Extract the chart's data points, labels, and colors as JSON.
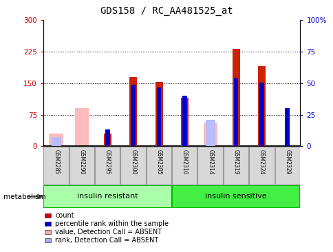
{
  "title": "GDS158 / RC_AA481525_at",
  "samples": [
    "GSM2285",
    "GSM2290",
    "GSM2295",
    "GSM2300",
    "GSM2305",
    "GSM2310",
    "GSM2314",
    "GSM2319",
    "GSM2324",
    "GSM2329"
  ],
  "red_bars": [
    0,
    0,
    30,
    165,
    153,
    115,
    0,
    232,
    190,
    0
  ],
  "blue_bars": [
    0,
    0,
    40,
    147,
    140,
    120,
    0,
    163,
    152,
    90
  ],
  "pink_bars": [
    30,
    90,
    0,
    0,
    0,
    0,
    55,
    0,
    0,
    0
  ],
  "lavender_bars": [
    22,
    0,
    0,
    0,
    0,
    0,
    62,
    0,
    0,
    0
  ],
  "ylim_left": [
    0,
    300
  ],
  "ylim_right": [
    0,
    100
  ],
  "yticks_left": [
    0,
    75,
    150,
    225,
    300
  ],
  "yticks_right": [
    0,
    25,
    50,
    75,
    100
  ],
  "ytick_labels_left": [
    "0",
    "75",
    "150",
    "225",
    "300"
  ],
  "ytick_labels_right": [
    "0",
    "25",
    "50",
    "75",
    "100%"
  ],
  "group1_label": "insulin resistant",
  "group2_label": "insulin sensitive",
  "metabolism_label": "metabolism",
  "legend_items": [
    {
      "label": "count",
      "color": "#cc0000"
    },
    {
      "label": "percentile rank within the sample",
      "color": "#0000cc"
    },
    {
      "label": "value, Detection Call = ABSENT",
      "color": "#ffaaaa"
    },
    {
      "label": "rank, Detection Call = ABSENT",
      "color": "#aaaaff"
    }
  ],
  "background_color": "#ffffff",
  "plot_bg": "#ffffff",
  "cell_bg": "#d8d8d8",
  "group1_color": "#aaffaa",
  "group2_color": "#44ee44",
  "group_border": "#00bb00"
}
